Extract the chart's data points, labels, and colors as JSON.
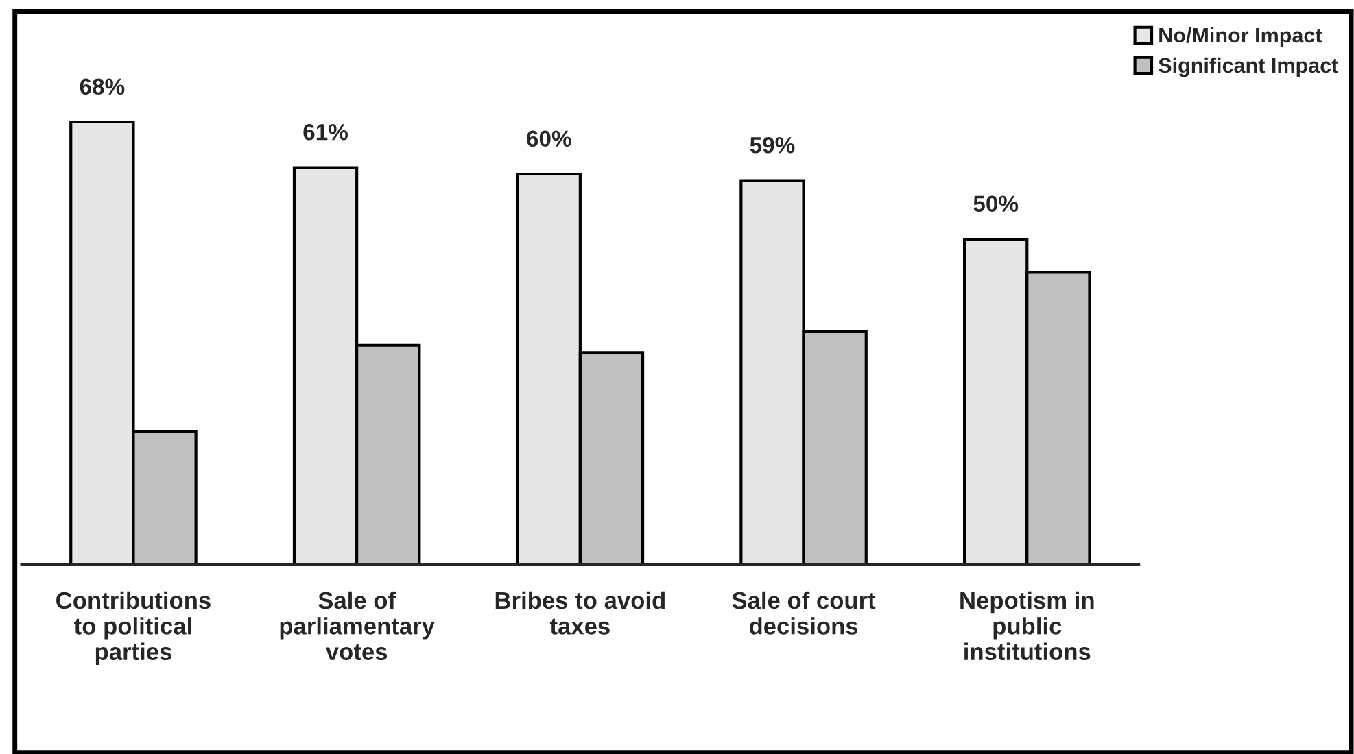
{
  "chart_data": {
    "type": "bar",
    "categories": [
      "Contributions\nto political\nparties",
      "Sale of\nparliamentary\nvotes",
      "Bribes to avoid\ntaxes",
      "Sale of court\ndecisions",
      "Nepotism in\npublic\ninstitutions"
    ],
    "series": [
      {
        "name": "No/Minor Impact",
        "color": "#e6e6e6",
        "values": [
          68,
          61,
          60,
          59,
          50
        ],
        "value_labels": [
          "68%",
          "61%",
          "60%",
          "59%",
          "50%"
        ]
      },
      {
        "name": "Significant Impact",
        "color": "#c0c0c0",
        "values": [
          20.5,
          33.7,
          32.6,
          35.8,
          44.9
        ]
      }
    ],
    "ylim": [
      0,
      85
    ],
    "tick_labels": "x",
    "legend": "top right",
    "grid": false
  }
}
